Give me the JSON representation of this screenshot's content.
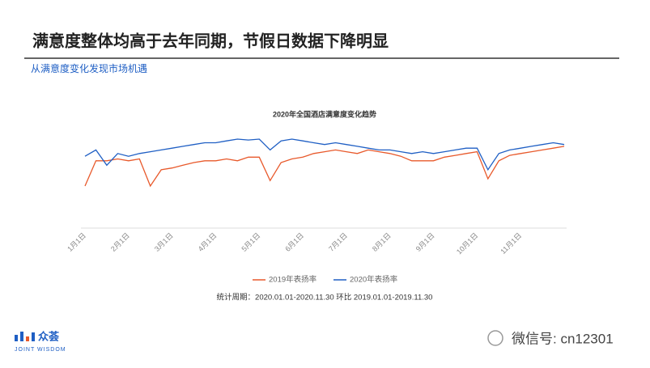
{
  "header": {
    "title": "满意度整体均高于去年同期，节假日数据下降明显",
    "subtitle": "从满意度变化发现市场机遇"
  },
  "chart_data": {
    "type": "line",
    "title": "2020年全国酒店满意度变化趋势",
    "categories": [
      "1月1日",
      null,
      null,
      null,
      "2月1日",
      null,
      null,
      null,
      "3月1日",
      null,
      null,
      null,
      "4月1日",
      null,
      null,
      null,
      "5月1日",
      null,
      null,
      null,
      "6月1日",
      null,
      null,
      null,
      "7月1日",
      null,
      null,
      null,
      "8月1日",
      null,
      null,
      null,
      "9月1日",
      null,
      null,
      null,
      "10月1日",
      null,
      null,
      null,
      "11月1日",
      null,
      null,
      null,
      null
    ],
    "series": [
      {
        "name": "2019年表扬率",
        "color": "#e8592b",
        "values": [
          94.2,
          97.0,
          97.0,
          97.2,
          97.0,
          97.2,
          94.2,
          96.0,
          96.2,
          96.5,
          96.8,
          97.0,
          97.0,
          97.2,
          97.0,
          97.4,
          97.4,
          94.8,
          96.8,
          97.2,
          97.4,
          97.8,
          98.0,
          98.2,
          98.0,
          97.8,
          98.2,
          98.0,
          97.8,
          97.5,
          97.0,
          97.0,
          97.0,
          97.4,
          97.6,
          97.8,
          98.0,
          95.0,
          97.0,
          97.6,
          97.8,
          98.0,
          98.2,
          98.4,
          98.6
        ]
      },
      {
        "name": "2020年表扬率",
        "color": "#1f5fc4",
        "values": [
          97.5,
          98.2,
          96.5,
          97.8,
          97.5,
          97.8,
          98.0,
          98.2,
          98.4,
          98.6,
          98.8,
          99.0,
          99.0,
          99.2,
          99.4,
          99.3,
          99.4,
          98.2,
          99.2,
          99.4,
          99.2,
          99.0,
          98.8,
          99.0,
          98.8,
          98.6,
          98.4,
          98.2,
          98.2,
          98.0,
          97.8,
          98.0,
          97.8,
          98.0,
          98.2,
          98.4,
          98.4,
          96.0,
          97.8,
          98.2,
          98.4,
          98.6,
          98.8,
          99.0,
          98.8
        ]
      }
    ],
    "note": "统计周期：2020.01.01-2020.11.30  环比 2019.01.01-2019.11.30",
    "legend": "bottom"
  },
  "footer": {
    "logo": "众荟",
    "logo_sub": "JOINT WISDOM",
    "watermark": "微信号: cn12301"
  }
}
